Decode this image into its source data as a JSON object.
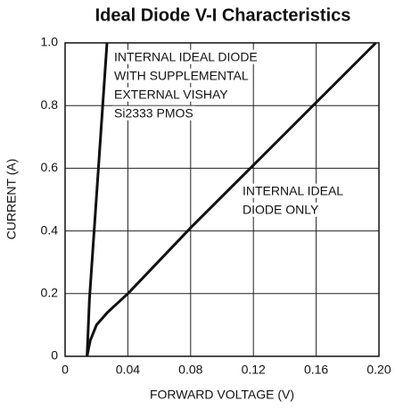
{
  "chart_data": {
    "type": "line",
    "title": "Ideal Diode V-I Characteristics",
    "x_label": "FORWARD VOLTAGE (V)",
    "y_label": "CURRENT (A)",
    "xlim": [
      0,
      0.2
    ],
    "ylim": [
      0,
      1
    ],
    "xticks": [
      0,
      0.04,
      0.08,
      0.12,
      0.16,
      {
        "value": 0.2,
        "label": "0.20"
      }
    ],
    "yticks": [
      0,
      0.2,
      0.4,
      0.6,
      0.8,
      {
        "value": 1,
        "label": "1.0"
      }
    ],
    "grid": true,
    "series": [
      {
        "color": "#111111",
        "x": [
          0.014,
          0.0155,
          0.0267
        ],
        "values": [
          0,
          0.18,
          1.0
        ]
      },
      {
        "color": "#111111",
        "x": [
          0.014,
          0.016,
          0.02,
          0.027,
          0.04,
          0.08,
          0.12,
          0.16,
          0.198
        ],
        "values": [
          0,
          0.05,
          0.1,
          0.14,
          0.2,
          0.41,
          0.61,
          0.81,
          1.0
        ]
      }
    ],
    "annotations": [
      {
        "lines": [
          "INTERNAL IDEAL DIODE",
          "WITH SUPPLEMENTAL",
          "EXTERNAL VISHAY",
          "Si2333 PMOS"
        ]
      },
      {
        "lines": [
          "INTERNAL IDEAL",
          "DIODE ONLY"
        ]
      }
    ]
  }
}
